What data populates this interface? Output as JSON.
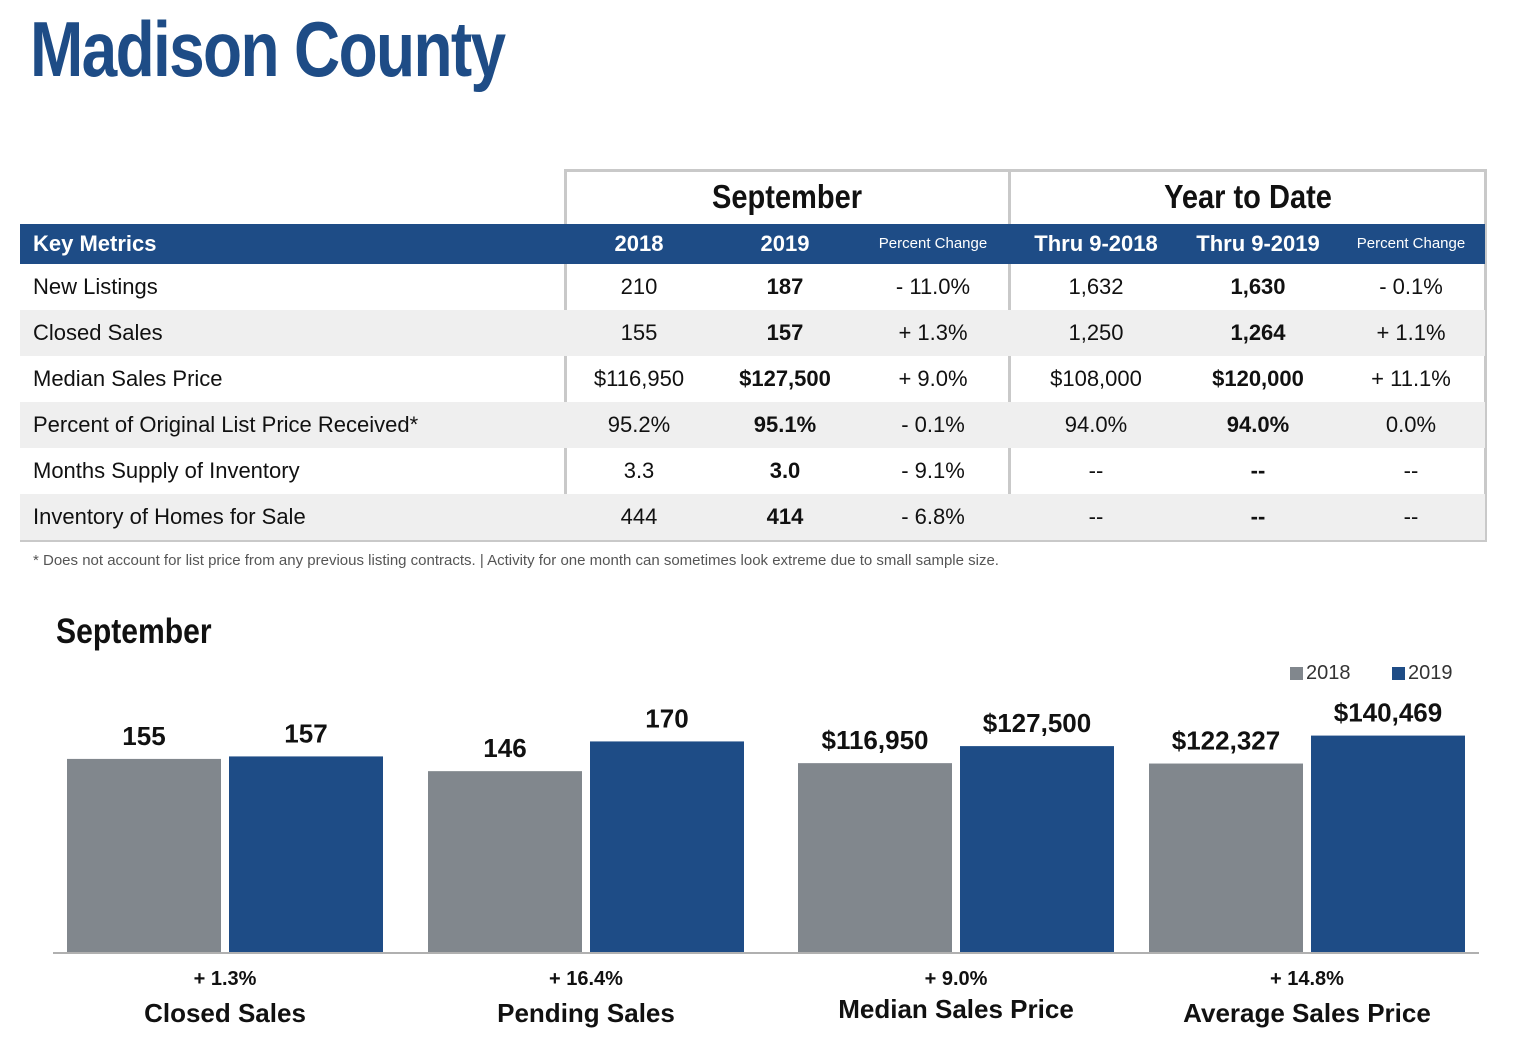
{
  "page": {
    "title": "Madison County"
  },
  "table": {
    "group_september": "September",
    "group_ytd": "Year to Date",
    "headers": {
      "metric": "Key Metrics",
      "sep_2018": "2018",
      "sep_2019": "2019",
      "sep_pct": "Percent Change",
      "ytd_2018": "Thru 9-2018",
      "ytd_2019": "Thru 9-2019",
      "ytd_pct": "Percent Change"
    },
    "rows": [
      {
        "metric": "New Listings",
        "sep_2018": "210",
        "sep_2019": "187",
        "sep_pct": "- 11.0%",
        "ytd_2018": "1,632",
        "ytd_2019": "1,630",
        "ytd_pct": "- 0.1%"
      },
      {
        "metric": "Closed Sales",
        "sep_2018": "155",
        "sep_2019": "157",
        "sep_pct": "+ 1.3%",
        "ytd_2018": "1,250",
        "ytd_2019": "1,264",
        "ytd_pct": "+ 1.1%"
      },
      {
        "metric": "Median Sales Price",
        "sep_2018": "$116,950",
        "sep_2019": "$127,500",
        "sep_pct": "+ 9.0%",
        "ytd_2018": "$108,000",
        "ytd_2019": "$120,000",
        "ytd_pct": "+ 11.1%"
      },
      {
        "metric": "Percent of Original List Price Received*",
        "sep_2018": "95.2%",
        "sep_2019": "95.1%",
        "sep_pct": "- 0.1%",
        "ytd_2018": "94.0%",
        "ytd_2019": "94.0%",
        "ytd_pct": "0.0%"
      },
      {
        "metric": "Months Supply of Inventory",
        "sep_2018": "3.3",
        "sep_2019": "3.0",
        "sep_pct": "- 9.1%",
        "ytd_2018": "--",
        "ytd_2019": "--",
        "ytd_pct": "--"
      },
      {
        "metric": "Inventory of Homes for Sale",
        "sep_2018": "444",
        "sep_2019": "414",
        "sep_pct": "- 6.8%",
        "ytd_2018": "--",
        "ytd_2019": "--",
        "ytd_pct": "--"
      }
    ],
    "footnote": "* Does not account for list price from any previous listing contracts.  |  Activity for one month can sometimes look extreme due to small sample size."
  },
  "chart_data": {
    "type": "bar",
    "title": "September",
    "legend_position": "top-right",
    "colors": {
      "2018": "#81878d",
      "2019": "#1e4c86"
    },
    "series": [
      {
        "name": "2018"
      },
      {
        "name": "2019"
      }
    ],
    "panels": [
      {
        "category": "Closed Sales",
        "change": "+ 1.3%",
        "values": [
          155,
          157
        ],
        "labels": [
          "155",
          "157"
        ]
      },
      {
        "category": "Pending Sales",
        "change": "+ 16.4%",
        "values": [
          146,
          170
        ],
        "labels": [
          "146",
          "170"
        ]
      },
      {
        "category": "Median Sales Price",
        "change": "+ 9.0%",
        "values": [
          116950,
          127500
        ],
        "labels": [
          "$116,950",
          "$127,500"
        ]
      },
      {
        "category": "Average Sales Price",
        "change": "+ 14.8%",
        "values": [
          122327,
          140469
        ],
        "labels": [
          "$122,327",
          "$140,469"
        ]
      }
    ]
  }
}
